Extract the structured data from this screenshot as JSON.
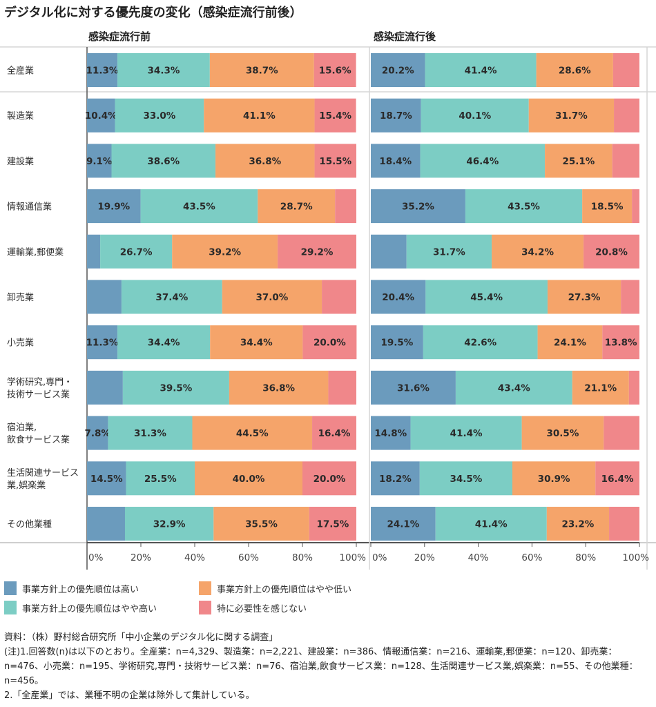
{
  "chart_data": {
    "type": "bar",
    "orientation": "horizontal-stacked-100",
    "title": "デジタル化に対する優先度の変化（感染症流行前後）",
    "categories": [
      "全産業",
      "製造業",
      "建設業",
      "情報通信業",
      "運輸業,郵便業",
      "卸売業",
      "小売業",
      "学術研究,専門・\n技術サービス業",
      "宿泊業,\n飲食サービス業",
      "生活関連サービス\n業,娯楽業",
      "その他業種"
    ],
    "legend": [
      {
        "name": "事業方針上の優先順位は高い",
        "color": "#6b9bbd"
      },
      {
        "name": "事業方針上の優先順位はやや高い",
        "color": "#7ccdc4"
      },
      {
        "name": "事業方針上の優先順位はやや低い",
        "color": "#f5a46a"
      },
      {
        "name": "特に必要性を感じない",
        "color": "#f0878a"
      }
    ],
    "legend_placement": "bottom-left",
    "xlim": [
      0,
      100
    ],
    "xticks": [
      "0%",
      "20%",
      "40%",
      "60%",
      "80%",
      "100%"
    ],
    "panels": [
      {
        "name": "感染症流行前",
        "series": [
          {
            "name": "事業方針上の優先順位は高い",
            "values": [
              11.3,
              10.4,
              9.1,
              19.9,
              4.9,
              12.8,
              11.3,
              13.3,
              7.8,
              14.5,
              14.1
            ]
          },
          {
            "name": "事業方針上の優先順位はやや高い",
            "values": [
              34.3,
              33.0,
              38.6,
              43.5,
              26.7,
              37.4,
              34.4,
              39.5,
              31.3,
              25.5,
              32.9
            ]
          },
          {
            "name": "事業方針上の優先順位はやや低い",
            "values": [
              38.7,
              41.1,
              36.8,
              28.7,
              39.2,
              37.0,
              34.4,
              36.8,
              44.5,
              40.0,
              35.5
            ]
          },
          {
            "name": "特に必要性を感じない",
            "values": [
              15.6,
              15.4,
              15.5,
              7.9,
              29.2,
              12.8,
              20.0,
              10.4,
              16.4,
              20.0,
              17.5
            ]
          }
        ],
        "labels_shown": [
          [
            true,
            true,
            true,
            true,
            false,
            false,
            true,
            false,
            true,
            true,
            false
          ],
          [
            true,
            true,
            true,
            true,
            true,
            true,
            true,
            true,
            true,
            true,
            true
          ],
          [
            true,
            true,
            true,
            true,
            true,
            true,
            true,
            true,
            true,
            true,
            true
          ],
          [
            true,
            true,
            true,
            false,
            true,
            false,
            true,
            false,
            true,
            true,
            true
          ]
        ]
      },
      {
        "name": "感染症流行後",
        "series": [
          {
            "name": "事業方針上の優先順位は高い",
            "values": [
              20.2,
              18.7,
              18.4,
              35.2,
              13.3,
              20.4,
              19.5,
              31.6,
              14.8,
              18.2,
              24.1
            ]
          },
          {
            "name": "事業方針上の優先順位はやや高い",
            "values": [
              41.4,
              40.1,
              46.4,
              43.5,
              31.7,
              45.4,
              42.6,
              43.4,
              41.4,
              34.5,
              41.4
            ]
          },
          {
            "name": "事業方針上の優先順位はやや低い",
            "values": [
              28.6,
              31.7,
              25.1,
              18.5,
              34.2,
              27.3,
              24.1,
              21.1,
              30.5,
              30.9,
              23.2
            ]
          },
          {
            "name": "特に必要性を感じない",
            "values": [
              9.8,
              9.5,
              10.1,
              2.8,
              20.8,
              6.9,
              13.8,
              3.9,
              13.3,
              16.4,
              11.3
            ]
          }
        ],
        "labels_shown": [
          [
            true,
            true,
            true,
            true,
            false,
            true,
            true,
            true,
            true,
            true,
            true
          ],
          [
            true,
            true,
            true,
            true,
            true,
            true,
            true,
            true,
            true,
            true,
            true
          ],
          [
            true,
            true,
            true,
            true,
            true,
            true,
            true,
            true,
            true,
            true,
            true
          ],
          [
            false,
            false,
            false,
            false,
            true,
            false,
            true,
            false,
            false,
            true,
            false
          ]
        ]
      }
    ]
  },
  "notes": {
    "source": "資料：（株）野村総合研究所「中小企業のデジタル化に関する調査」",
    "note1": "(注)1.回答数(n)は以下のとおり。全産業：n=4,329、製造業：n=2,221、建設業：n=386、情報通信業：n=216、運輸業,郵便業：n=120、卸売業：n=476、小売業：n=195、学術研究,専門・技術サービス業：n=76、宿泊業,飲食サービス業：n=128、生活関連サービス業,娯楽業：n=55、その他業種：n=456。",
    "note2": "2.「全産業」では、業種不明の企業は除外して集計している。"
  }
}
